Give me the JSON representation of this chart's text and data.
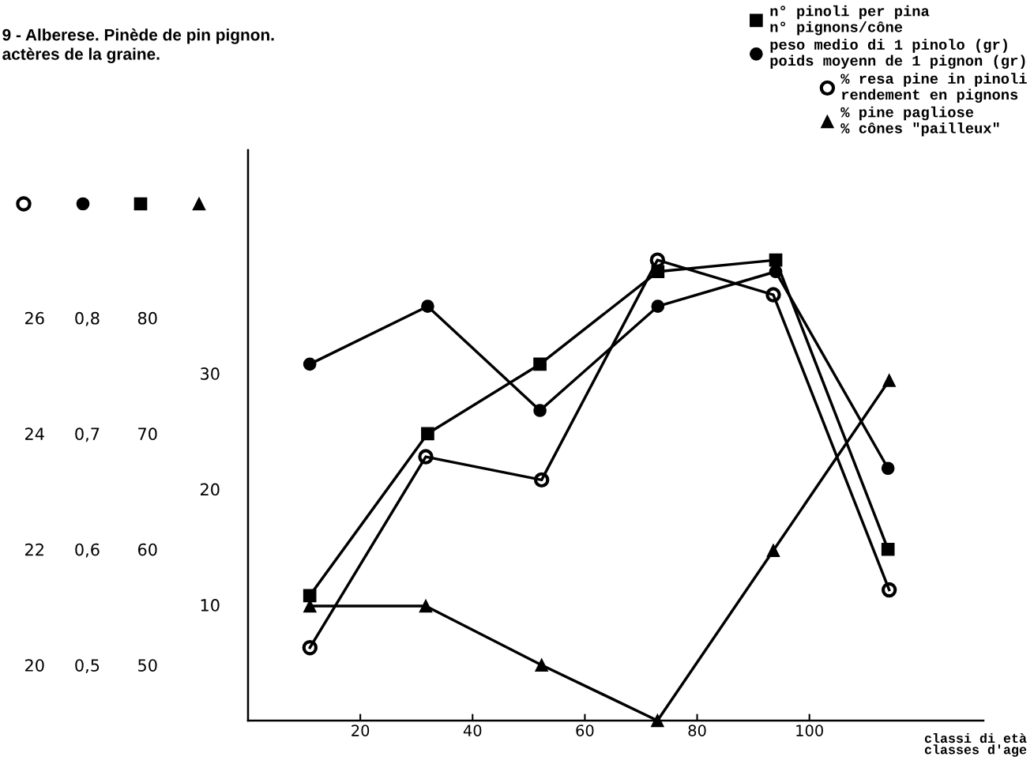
{
  "chart_data": [
    {
      "type": "line",
      "title": "9 - Alberese. Pinède de pin pignon.\nactères de la graine.",
      "xlabel": "classi di età\nclasses d'age",
      "x": [
        11,
        32,
        52,
        73,
        94,
        114
      ],
      "xlim": [
        0,
        131
      ],
      "xticks": [
        20,
        40,
        60,
        80,
        100
      ],
      "ylim": [
        45.2,
        94.5
      ],
      "yticks": [
        50,
        60,
        70,
        80
      ],
      "y2lim": [
        0.452,
        0.945
      ],
      "y2ticks": [
        {
          "value": 0.5,
          "label": "0,5"
        },
        {
          "value": 0.6,
          "label": "0,6"
        },
        {
          "value": 0.7,
          "label": "0,7"
        },
        {
          "value": 0.8,
          "label": "0,8"
        }
      ],
      "series": [
        {
          "name": "n° pinoli per pina\nn° pignons/cône",
          "color": "#000000",
          "marker": "square",
          "values": [
            56,
            70,
            76,
            84,
            85,
            60
          ]
        },
        {
          "name": "peso medio di 1 pinolo (gr)\npoids moyenn de 1 pignon (gr)",
          "color": "#000000",
          "axis": "y2",
          "marker": "circle",
          "values": [
            0.76,
            0.81,
            0.72,
            0.81,
            0.84,
            0.67
          ]
        }
      ],
      "line_style": "solid",
      "grid": false,
      "legend": "top right"
    },
    {
      "type": "line",
      "categories": [
        null,
        null,
        null,
        null,
        null,
        null
      ],
      "ylim": [
        0,
        49.3
      ],
      "yticks": [
        10,
        20,
        30
      ],
      "y2lim": [
        19.04,
        28.9
      ],
      "y2ticks": [
        20,
        22,
        24,
        26
      ],
      "tick_labels": "y",
      "series": [
        {
          "name": "% resa pine in pinoli\nrendement en pignons",
          "color": "#000000",
          "axis": "y2",
          "marker": "circle",
          "values": [
            20.3,
            23.6,
            23.2,
            27.0,
            26.4,
            21.3
          ]
        },
        {
          "name": "% pine pagliose\n% cônes \"pailleux\"",
          "color": "#000000",
          "marker": "triangle",
          "values": [
            9.9,
            9.9,
            4.8,
            0,
            14.7,
            29.4
          ]
        }
      ],
      "line_style": "solid",
      "grid": false,
      "legend": "top right"
    }
  ]
}
